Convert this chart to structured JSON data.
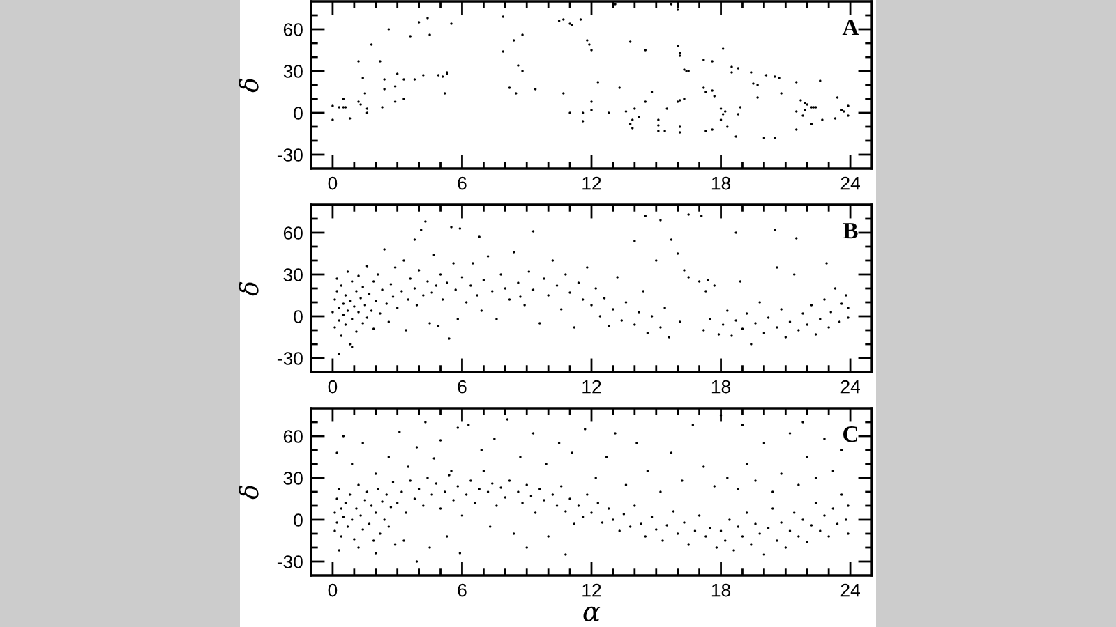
{
  "chart_data": [
    {
      "type": "scatter",
      "ylabel": "δ",
      "annotations": [
        "A"
      ],
      "color": "#000000",
      "marker": "circle",
      "xlim": [
        -1,
        25
      ],
      "ylim": [
        -40,
        80
      ],
      "xticks": [
        0,
        {
          "value": 1,
          "label": null
        },
        {
          "value": 2,
          "label": null
        },
        {
          "value": 3,
          "label": null
        },
        {
          "value": 4,
          "label": null
        },
        {
          "value": 5,
          "label": null
        },
        6,
        {
          "value": 7,
          "label": null
        },
        {
          "value": 8,
          "label": null
        },
        {
          "value": 9,
          "label": null
        },
        {
          "value": 10,
          "label": null
        },
        {
          "value": 11,
          "label": null
        },
        12,
        {
          "value": 13,
          "label": null
        },
        {
          "value": 14,
          "label": null
        },
        {
          "value": 15,
          "label": null
        },
        {
          "value": 16,
          "label": null
        },
        {
          "value": 17,
          "label": null
        },
        18,
        {
          "value": 19,
          "label": null
        },
        {
          "value": 20,
          "label": null
        },
        {
          "value": 21,
          "label": null
        },
        {
          "value": 22,
          "label": null
        },
        {
          "value": 23,
          "label": null
        },
        24
      ],
      "yticks": [
        -30,
        {
          "value": -20,
          "label": null
        },
        {
          "value": -10,
          "label": null
        },
        0,
        {
          "value": 10,
          "label": null
        },
        {
          "value": 20,
          "label": null
        },
        30,
        {
          "value": 40,
          "label": null
        },
        {
          "value": 50,
          "label": null
        },
        60,
        {
          "value": 70,
          "label": null
        }
      ],
      "x": [
        0,
        0,
        0.3,
        0.5,
        0.5,
        0.6,
        0.8,
        1.2,
        1.2,
        1.3,
        1.4,
        1.5,
        1.6,
        1.6,
        1.8,
        2.2,
        2.3,
        2.4,
        2.4,
        2.6,
        2.9,
        2.9,
        3.0,
        3.3,
        3.3,
        3.6,
        3.8,
        4.0,
        4.2,
        4.4,
        4.5,
        4.9,
        5.1,
        5.2,
        5.3,
        5.3,
        5.5,
        7.9,
        7.9,
        8.2,
        8.4,
        8.5,
        8.6,
        8.8,
        8.8,
        9.4,
        10.5,
        10.7,
        11.0,
        11.1,
        11.5,
        13.1,
        15.7,
        16.0,
        11.8,
        11.9,
        12.0,
        13.8,
        14.5,
        16.0,
        16.1,
        16.1,
        16.3,
        16.4,
        16.5,
        17.2,
        17.6,
        18.1,
        18.5,
        18.5,
        18.8,
        19.4,
        20.1,
        20.5,
        20.7,
        19.5,
        19.7,
        21.5,
        22.6,
        12.3,
        10.7,
        13.3,
        12.0,
        12.0,
        11.0,
        11.6,
        11.6,
        12.8,
        13.6,
        14.0,
        14.2,
        13.9,
        13.8,
        13.9,
        14.5,
        14.8,
        15.5,
        15.1,
        15.1,
        15.1,
        15.4,
        16.0,
        16.1,
        16.3,
        16.1,
        16.1,
        17.2,
        17.3,
        17.6,
        17.7,
        17.3,
        17.6,
        18.0,
        18.2,
        18.1,
        18.0,
        18.3,
        18.7,
        18.9,
        18.8,
        19.7,
        20.0,
        20.5,
        20.8,
        21.5,
        21.5,
        21.7,
        21.9,
        22.0,
        22.2,
        22.3,
        22.4,
        21.9,
        21.8,
        22.2,
        22.7,
        23.3,
        23.4,
        23.6,
        23.7,
        23.9,
        23.9
      ],
      "values": [
        5,
        -5,
        4,
        4,
        10,
        4,
        -4,
        37,
        8,
        6,
        25,
        14,
        3,
        0,
        49,
        37,
        4,
        24,
        17,
        60,
        8,
        19,
        28,
        24,
        10,
        55,
        24,
        65,
        27,
        68,
        56,
        27,
        26,
        14,
        28,
        29,
        64,
        69,
        44,
        18,
        52,
        14,
        34,
        30,
        56,
        17,
        66,
        67,
        64,
        63,
        67,
        78,
        78,
        74,
        52,
        49,
        45,
        51,
        45,
        48,
        43,
        41,
        31,
        30,
        30,
        38,
        37,
        46,
        33,
        29,
        32,
        29,
        27,
        26,
        25,
        21,
        20,
        22,
        23,
        22,
        14,
        18,
        8,
        2,
        0,
        0,
        -6,
        0,
        1,
        3,
        -3,
        -5,
        -8,
        -11,
        8,
        15,
        3,
        -5,
        -9,
        -13,
        -13,
        8,
        9,
        10,
        -10,
        -14,
        18,
        15,
        16,
        12,
        -13,
        -12,
        3,
        1,
        -1,
        -5,
        -10,
        -17,
        4,
        -1,
        11,
        -18,
        -18,
        14,
        -12,
        1,
        9,
        7,
        6,
        4,
        4,
        4,
        2,
        -2,
        -8,
        -5,
        -4,
        11,
        2,
        1,
        5,
        -2
      ]
    },
    {
      "type": "scatter",
      "ylabel": "δ",
      "annotations": [
        "B"
      ],
      "color": "#000000",
      "marker": "circle",
      "xlim": [
        -1,
        25
      ],
      "ylim": [
        -40,
        80
      ],
      "xticks": [
        0,
        {
          "value": 1,
          "label": null
        },
        {
          "value": 2,
          "label": null
        },
        {
          "value": 3,
          "label": null
        },
        {
          "value": 4,
          "label": null
        },
        {
          "value": 5,
          "label": null
        },
        6,
        {
          "value": 7,
          "label": null
        },
        {
          "value": 8,
          "label": null
        },
        {
          "value": 9,
          "label": null
        },
        {
          "value": 10,
          "label": null
        },
        {
          "value": 11,
          "label": null
        },
        12,
        {
          "value": 13,
          "label": null
        },
        {
          "value": 14,
          "label": null
        },
        {
          "value": 15,
          "label": null
        },
        {
          "value": 16,
          "label": null
        },
        {
          "value": 17,
          "label": null
        },
        18,
        {
          "value": 19,
          "label": null
        },
        {
          "value": 20,
          "label": null
        },
        {
          "value": 21,
          "label": null
        },
        {
          "value": 22,
          "label": null
        },
        {
          "value": 23,
          "label": null
        },
        24
      ],
      "yticks": [
        -30,
        {
          "value": -20,
          "label": null
        },
        {
          "value": -10,
          "label": null
        },
        0,
        {
          "value": 10,
          "label": null
        },
        {
          "value": 20,
          "label": null
        },
        30,
        {
          "value": 40,
          "label": null
        },
        {
          "value": 50,
          "label": null
        },
        60,
        {
          "value": 70,
          "label": null
        }
      ],
      "x": [
        0.0,
        0.1,
        0.1,
        0.2,
        0.2,
        0.3,
        0.3,
        0.4,
        0.4,
        0.5,
        0.5,
        0.6,
        0.6,
        0.7,
        0.7,
        0.8,
        0.8,
        0.9,
        0.9,
        1.0,
        1.1,
        1.1,
        1.2,
        1.2,
        1.3,
        1.4,
        1.4,
        1.5,
        1.6,
        1.6,
        1.7,
        1.8,
        1.9,
        1.9,
        2.0,
        2.1,
        2.2,
        2.3,
        2.4,
        2.5,
        2.6,
        2.7,
        2.8,
        2.9,
        3.0,
        0.3,
        0.9,
        3.2,
        3.3,
        3.4,
        3.5,
        3.6,
        3.8,
        3.8,
        3.9,
        4.0,
        4.1,
        4.2,
        4.3,
        4.4,
        4.5,
        4.6,
        4.7,
        4.8,
        4.9,
        5.0,
        5.1,
        5.3,
        5.4,
        5.5,
        5.6,
        5.7,
        5.8,
        5.9,
        6.0,
        6.2,
        6.4,
        6.5,
        6.7,
        6.8,
        6.9,
        7.0,
        7.2,
        7.4,
        7.6,
        7.8,
        8.0,
        8.2,
        8.4,
        8.6,
        8.7,
        8.9,
        9.1,
        9.3,
        9.3,
        9.6,
        9.8,
        10.0,
        10.2,
        10.4,
        10.6,
        10.8,
        11.0,
        11.2,
        11.4,
        11.6,
        11.8,
        12.0,
        12.2,
        12.4,
        12.6,
        12.8,
        13.0,
        13.2,
        13.4,
        13.6,
        14.0,
        14.0,
        14.2,
        14.4,
        14.6,
        14.8,
        15.0,
        15.2,
        15.4,
        15.6,
        15.7,
        16.0,
        16.1,
        16.3,
        16.5,
        17.0,
        17.4,
        17.7,
        17.2,
        17.3,
        17.5,
        17.9,
        14.5,
        15.2,
        16.5,
        17.1,
        18.1,
        18.3,
        18.5,
        18.7,
        18.9,
        19.0,
        19.2,
        19.4,
        19.6,
        19.8,
        20.0,
        20.2,
        20.5,
        20.6,
        20.8,
        21.0,
        21.2,
        21.4,
        21.6,
        21.8,
        22.0,
        22.2,
        22.4,
        22.6,
        22.8,
        23.0,
        23.1,
        23.3,
        23.5,
        23.6,
        23.8,
        23.9,
        23.9,
        21.5,
        22.9,
        18.7,
        20.6
      ],
      "values": [
        3,
        12,
        -8,
        27,
        18,
        -3,
        6,
        -14,
        22,
        1,
        9,
        -6,
        15,
        32,
        4,
        -20,
        11,
        25,
        -2,
        7,
        18,
        -11,
        3,
        29,
        13,
        -5,
        21,
        8,
        36,
        -1,
        16,
        4,
        25,
        -9,
        11,
        30,
        2,
        19,
        48,
        9,
        -4,
        23,
        14,
        35,
        6,
        -27,
        -22,
        18,
        40,
        -10,
        12,
        27,
        55,
        20,
        8,
        33,
        62,
        15,
        68,
        25,
        -5,
        17,
        44,
        22,
        -7,
        30,
        12,
        24,
        -16,
        64,
        38,
        19,
        -2,
        63,
        28,
        10,
        22,
        38,
        15,
        57,
        4,
        26,
        43,
        18,
        -2,
        30,
        20,
        12,
        46,
        24,
        14,
        8,
        32,
        19,
        61,
        -5,
        27,
        15,
        40,
        22,
        5,
        30,
        17,
        -8,
        24,
        12,
        35,
        8,
        20,
        0,
        13,
        -7,
        5,
        28,
        -3,
        10,
        54,
        -6,
        3,
        18,
        -12,
        0,
        40,
        -8,
        6,
        -15,
        55,
        45,
        -4,
        33,
        28,
        25,
        26,
        22,
        -10,
        18,
        -2,
        -13,
        72,
        69,
        73,
        72,
        -6,
        4,
        -14,
        -3,
        25,
        -9,
        2,
        -20,
        -5,
        10,
        -12,
        -1,
        62,
        -8,
        5,
        -15,
        -4,
        30,
        -10,
        2,
        -6,
        8,
        -13,
        -2,
        12,
        -8,
        3,
        20,
        -4,
        9,
        15,
        -1,
        6,
        56,
        38,
        60,
        35
      ]
    },
    {
      "type": "scatter",
      "ylabel": "δ",
      "xlabel": "α",
      "annotations": [
        "C"
      ],
      "color": "#000000",
      "marker": "circle",
      "xlim": [
        -1,
        25
      ],
      "ylim": [
        -40,
        80
      ],
      "xticks": [
        0,
        {
          "value": 1,
          "label": null
        },
        {
          "value": 2,
          "label": null
        },
        {
          "value": 3,
          "label": null
        },
        {
          "value": 4,
          "label": null
        },
        {
          "value": 5,
          "label": null
        },
        6,
        {
          "value": 7,
          "label": null
        },
        {
          "value": 8,
          "label": null
        },
        {
          "value": 9,
          "label": null
        },
        {
          "value": 10,
          "label": null
        },
        {
          "value": 11,
          "label": null
        },
        12,
        {
          "value": 13,
          "label": null
        },
        {
          "value": 14,
          "label": null
        },
        {
          "value": 15,
          "label": null
        },
        {
          "value": 16,
          "label": null
        },
        {
          "value": 17,
          "label": null
        },
        18,
        {
          "value": 19,
          "label": null
        },
        {
          "value": 20,
          "label": null
        },
        {
          "value": 21,
          "label": null
        },
        {
          "value": 22,
          "label": null
        },
        {
          "value": 23,
          "label": null
        },
        24
      ],
      "yticks": [
        -30,
        {
          "value": -20,
          "label": null
        },
        {
          "value": -10,
          "label": null
        },
        0,
        {
          "value": 10,
          "label": null
        },
        {
          "value": 20,
          "label": null
        },
        30,
        {
          "value": 40,
          "label": null
        },
        {
          "value": 50,
          "label": null
        },
        60,
        {
          "value": 70,
          "label": null
        }
      ],
      "x": [
        0.1,
        0.1,
        0.2,
        0.2,
        0.3,
        0.4,
        0.4,
        0.5,
        0.6,
        0.7,
        0.8,
        0.9,
        1.0,
        1.1,
        1.2,
        1.3,
        1.4,
        1.5,
        1.6,
        1.7,
        1.8,
        1.9,
        2.0,
        2.1,
        2.2,
        2.3,
        2.4,
        2.5,
        2.6,
        2.7,
        2.8,
        2.9,
        3.0,
        0.2,
        0.5,
        0.9,
        1.4,
        2.0,
        2.6,
        3.1,
        3.5,
        3.9,
        4.3,
        4.7,
        5.0,
        5.5,
        5.8,
        0.3,
        1.2,
        2.0,
        3.3,
        3.9,
        4.5,
        5.3,
        5.9,
        3.2,
        3.4,
        3.6,
        3.8,
        4.0,
        4.2,
        4.4,
        4.6,
        4.8,
        5.0,
        5.2,
        5.4,
        5.6,
        5.8,
        6.0,
        6.2,
        6.4,
        6.6,
        6.8,
        7.0,
        7.2,
        7.4,
        7.6,
        7.8,
        8.0,
        8.2,
        8.4,
        8.6,
        8.8,
        9.0,
        9.2,
        9.4,
        9.6,
        9.8,
        10.0,
        10.2,
        10.4,
        10.6,
        10.8,
        11.0,
        11.2,
        11.4,
        11.6,
        11.8,
        6.3,
        6.9,
        7.5,
        8.1,
        8.7,
        9.3,
        9.9,
        10.5,
        11.1,
        11.7,
        7.3,
        9.0,
        10.8,
        12.0,
        12.3,
        12.5,
        12.8,
        13.0,
        13.3,
        13.5,
        13.8,
        14.0,
        14.3,
        14.5,
        14.8,
        15.0,
        15.3,
        15.5,
        15.8,
        16.0,
        16.3,
        16.5,
        16.8,
        17.0,
        17.3,
        17.5,
        17.8,
        12.2,
        12.7,
        13.1,
        13.6,
        14.1,
        14.6,
        15.2,
        15.7,
        16.2,
        16.7,
        17.2,
        17.7,
        18.0,
        18.0,
        18.2,
        18.4,
        18.6,
        18.8,
        19.0,
        19.2,
        19.4,
        19.6,
        19.8,
        20.0,
        20.2,
        20.4,
        20.6,
        20.8,
        21.0,
        21.2,
        21.4,
        21.6,
        21.8,
        22.0,
        22.2,
        22.4,
        22.6,
        22.8,
        23.0,
        23.2,
        23.4,
        23.6,
        23.8,
        23.9,
        23.9,
        18.3,
        18.8,
        19.2,
        19.6,
        20.0,
        20.4,
        20.8,
        21.2,
        21.6,
        22.0,
        22.4,
        22.8,
        23.2,
        23.6,
        19.0,
        21.8
      ],
      "values": [
        5,
        -8,
        15,
        -2,
        22,
        8,
        -12,
        2,
        12,
        -5,
        18,
        0,
        -14,
        8,
        25,
        3,
        -7,
        14,
        20,
        -3,
        10,
        -15,
        5,
        22,
        -10,
        13,
        0,
        18,
        -5,
        9,
        27,
        -18,
        12,
        48,
        60,
        40,
        55,
        33,
        45,
        63,
        38,
        52,
        70,
        44,
        57,
        35,
        66,
        -22,
        -20,
        -24,
        -15,
        -30,
        -20,
        -12,
        -24,
        20,
        5,
        28,
        15,
        22,
        10,
        30,
        18,
        26,
        8,
        20,
        32,
        14,
        24,
        3,
        18,
        28,
        12,
        22,
        35,
        20,
        26,
        10,
        23,
        16,
        28,
        -10,
        20,
        12,
        25,
        17,
        5,
        22,
        14,
        -12,
        18,
        10,
        24,
        6,
        15,
        -3,
        10,
        2,
        18,
        68,
        50,
        58,
        72,
        45,
        62,
        40,
        55,
        48,
        65,
        -5,
        -20,
        -25,
        5,
        12,
        -2,
        8,
        0,
        -8,
        4,
        -5,
        10,
        -3,
        -12,
        2,
        -7,
        -15,
        -4,
        6,
        -10,
        -2,
        -18,
        -8,
        3,
        -12,
        -6,
        -20,
        30,
        45,
        62,
        25,
        55,
        35,
        20,
        48,
        28,
        68,
        38,
        24,
        75,
        -8,
        -15,
        0,
        -22,
        -5,
        -12,
        5,
        -18,
        -3,
        -10,
        -25,
        -6,
        8,
        -15,
        -2,
        -20,
        -8,
        5,
        -12,
        0,
        -16,
        -4,
        12,
        -8,
        3,
        -12,
        8,
        -3,
        18,
        0,
        10,
        -10,
        30,
        22,
        40,
        28,
        55,
        20,
        33,
        62,
        25,
        45,
        30,
        58,
        35,
        50,
        68,
        70
      ]
    }
  ]
}
